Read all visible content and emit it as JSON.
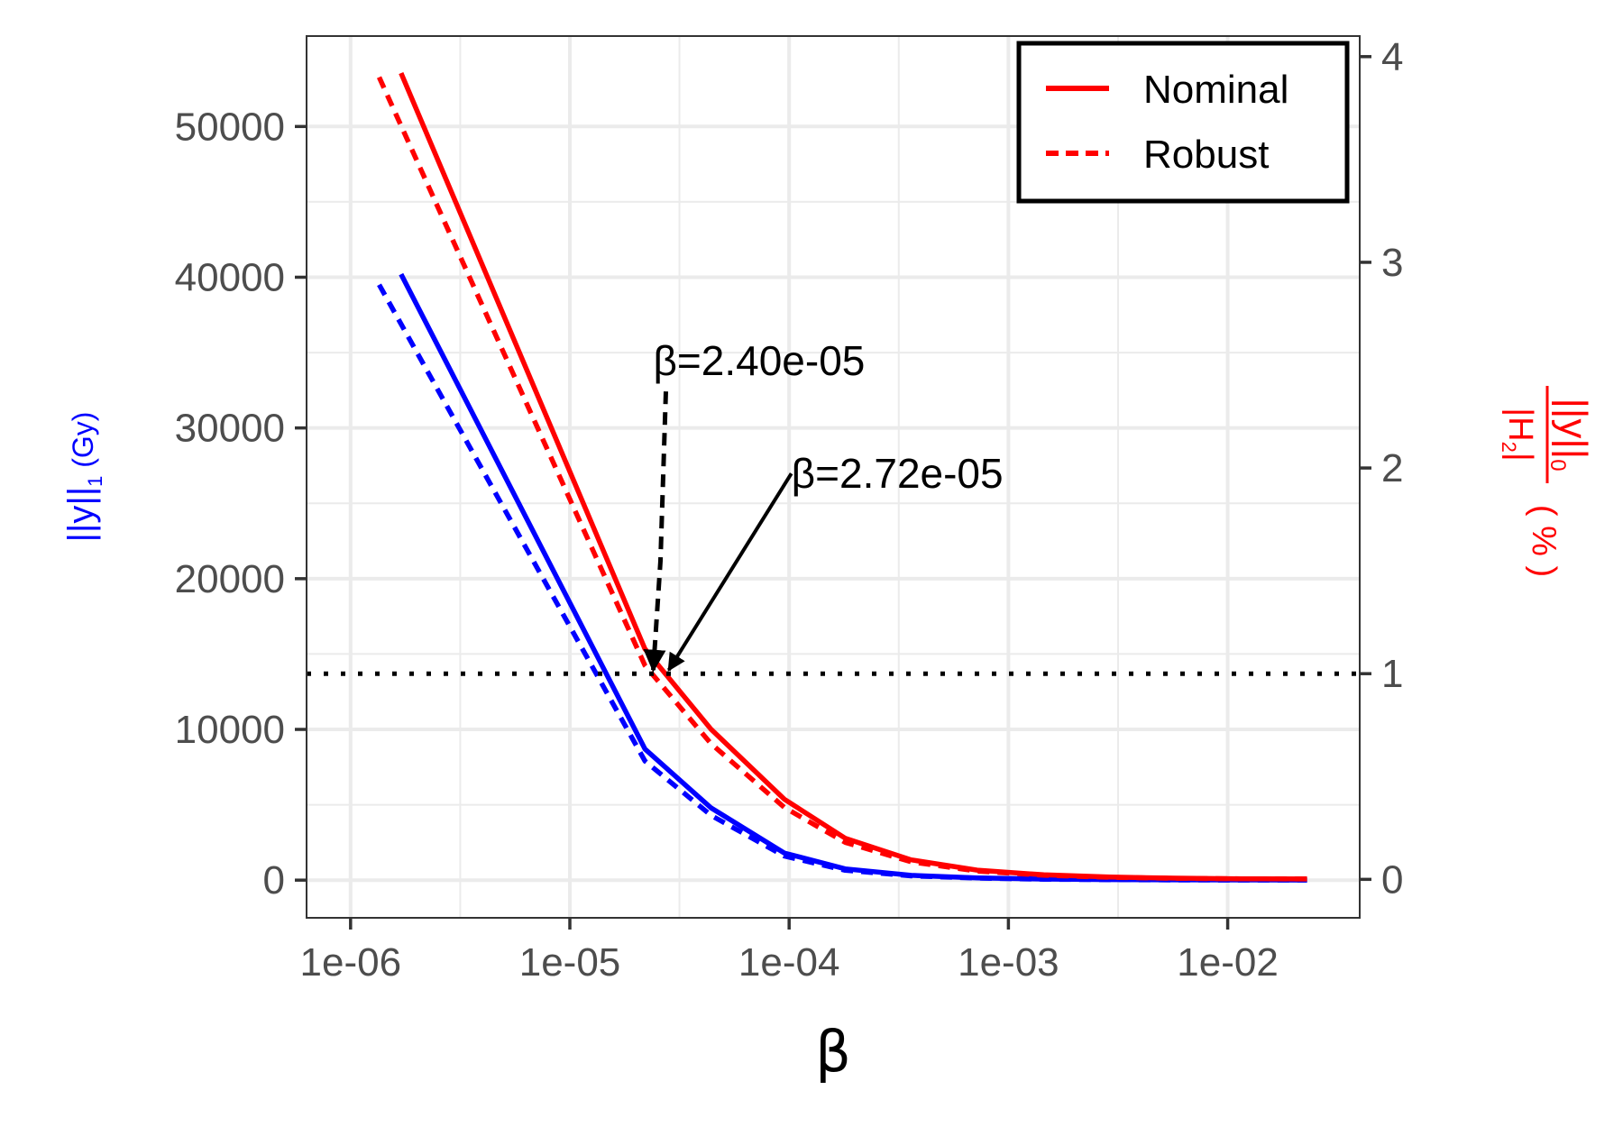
{
  "chart_data": {
    "type": "line",
    "xlabel": "β",
    "x_scale": "log",
    "xlim": [
      6.3e-07,
      0.04
    ],
    "x_ticks": [
      1e-06,
      1e-05,
      0.0001,
      0.001,
      0.01
    ],
    "x_tick_labels": [
      "1e-06",
      "1e-05",
      "1e-04",
      "1e-03",
      "1e-02"
    ],
    "y_left": {
      "label_parts": [
        "||y||",
        "1",
        " (Gy)"
      ],
      "color": "#0000ff",
      "ylim": [
        -2500,
        56000
      ],
      "ticks": [
        0,
        10000,
        20000,
        30000,
        40000,
        50000
      ],
      "tick_labels": [
        "0",
        "10000",
        "20000",
        "30000",
        "40000",
        "50000"
      ]
    },
    "y_right": {
      "label_num_parts": [
        "||y||",
        "0"
      ],
      "label_den_parts": [
        "|H",
        "2",
        "|"
      ],
      "label_unit": "( % )",
      "color": "#ff0000",
      "ylim": [
        -0.187,
        4.1
      ],
      "ticks": [
        0,
        1,
        2,
        3,
        4
      ],
      "tick_labels": [
        "0",
        "1",
        "2",
        "3",
        "4"
      ]
    },
    "grid": true,
    "legend": {
      "position": "top-right",
      "entries": [
        {
          "label": "Nominal",
          "style": "solid",
          "color": "#ff0000"
        },
        {
          "label": "Robust",
          "style": "dashed",
          "color": "#ff0000"
        }
      ]
    },
    "series": [
      {
        "axis": "left",
        "style": "solid",
        "color": "#0000ff",
        "x": [
          1.7e-06,
          2.2e-05,
          4.4e-05,
          9.5e-05,
          0.00018,
          0.00036,
          0.00072,
          0.00145,
          0.0029,
          0.0058,
          0.0115,
          0.023
        ],
        "y": [
          40200,
          8700,
          4800,
          1800,
          750,
          320,
          150,
          70,
          35,
          18,
          10,
          6
        ]
      },
      {
        "axis": "left",
        "style": "dashed",
        "color": "#0000ff",
        "x": [
          1.35e-06,
          2.2e-05,
          4.4e-05,
          9.5e-05,
          0.00018,
          0.00036,
          0.00072,
          0.00145,
          0.0029,
          0.0058,
          0.0115,
          0.023
        ],
        "y": [
          39500,
          7900,
          4300,
          1600,
          650,
          280,
          130,
          60,
          30,
          15,
          8,
          5
        ]
      },
      {
        "axis": "right",
        "style": "solid",
        "color": "#ff0000",
        "x": [
          1.7e-06,
          2.2e-05,
          4.4e-05,
          9.5e-05,
          0.00018,
          0.00036,
          0.00072,
          0.00145,
          0.0029,
          0.0058,
          0.0115,
          0.023
        ],
        "y": [
          3.92,
          1.12,
          0.73,
          0.39,
          0.2,
          0.095,
          0.045,
          0.022,
          0.011,
          0.006,
          0.003,
          0.002
        ]
      },
      {
        "axis": "right",
        "style": "dashed",
        "color": "#ff0000",
        "x": [
          1.35e-06,
          2.2e-05,
          4.4e-05,
          9.5e-05,
          0.00018,
          0.00036,
          0.00072,
          0.00145,
          0.0029,
          0.0058,
          0.0115,
          0.023
        ],
        "y": [
          3.9,
          1.04,
          0.66,
          0.35,
          0.18,
          0.085,
          0.04,
          0.02,
          0.01,
          0.005,
          0.003,
          0.002
        ]
      }
    ],
    "reference_line": {
      "axis": "right",
      "y": 1,
      "style": "dotted",
      "color": "#000000"
    },
    "annotations": [
      {
        "text": "β=2.40e-05",
        "x": 2.4e-05,
        "y_right": 1,
        "style": "dashed"
      },
      {
        "text": "β=2.72e-05",
        "x": 2.72e-05,
        "y_right": 1,
        "style": "solid"
      }
    ]
  }
}
